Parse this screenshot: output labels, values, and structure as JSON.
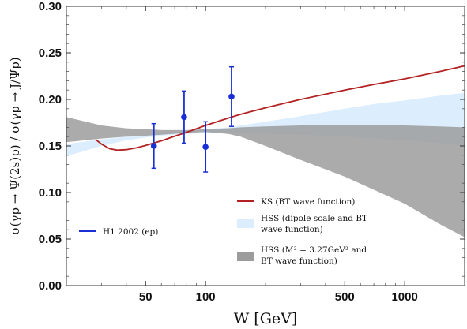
{
  "chart_data": {
    "type": "line",
    "title": "",
    "xlabel": "W [GeV]",
    "ylabel": "σ(γp → Ψ(2s)p) / σ(γp → J/Ψp)",
    "xscale": "log",
    "xlim": [
      20,
      2000
    ],
    "ylim": [
      0.0,
      0.3
    ],
    "x_ticks": [
      50,
      100,
      500,
      1000
    ],
    "y_ticks": [
      "0.00",
      "0.05",
      "0.10",
      "0.15",
      "0.20",
      "0.25",
      "0.30"
    ],
    "grid": false,
    "series": [
      {
        "name": "KS (BT wave function)",
        "kind": "line",
        "color": "#b22222",
        "x": [
          28,
          30,
          33,
          36,
          40,
          45,
          50,
          60,
          70,
          80,
          100,
          130,
          150,
          200,
          300,
          500,
          700,
          1000,
          1500,
          2000
        ],
        "y": [
          0.157,
          0.152,
          0.147,
          0.1455,
          0.146,
          0.148,
          0.1505,
          0.1555,
          0.1605,
          0.1645,
          0.172,
          0.18,
          0.184,
          0.191,
          0.2,
          0.21,
          0.216,
          0.222,
          0.23,
          0.236
        ]
      },
      {
        "name": "HSS (dipole scale and BT wave function)",
        "kind": "band",
        "color": "#dceefd",
        "x": [
          20,
          30,
          40,
          50,
          60,
          80,
          100,
          130,
          150,
          200,
          300,
          500,
          700,
          1000,
          1500,
          2000
        ],
        "y_low": [
          0.139,
          0.15,
          0.156,
          0.159,
          0.161,
          0.163,
          0.164,
          0.164,
          0.164,
          0.163,
          0.162,
          0.16,
          0.158,
          0.156,
          0.153,
          0.15
        ],
        "y_high": [
          0.152,
          0.157,
          0.16,
          0.162,
          0.164,
          0.166,
          0.168,
          0.17,
          0.172,
          0.176,
          0.182,
          0.19,
          0.195,
          0.199,
          0.204,
          0.207
        ]
      },
      {
        "name": "HSS (M² = 3.27GeV² and BT wave function)",
        "kind": "band",
        "color": "#9c9c9c",
        "x": [
          20,
          30,
          40,
          50,
          60,
          80,
          100,
          130,
          150,
          200,
          300,
          500,
          700,
          1000,
          1500,
          2000
        ],
        "y_low": [
          0.154,
          0.158,
          0.16,
          0.161,
          0.162,
          0.164,
          0.165,
          0.163,
          0.16,
          0.15,
          0.135,
          0.117,
          0.103,
          0.088,
          0.066,
          0.052
        ],
        "y_high": [
          0.181,
          0.172,
          0.169,
          0.168,
          0.167,
          0.167,
          0.168,
          0.169,
          0.17,
          0.171,
          0.172,
          0.172,
          0.172,
          0.172,
          0.171,
          0.17
        ]
      },
      {
        "name": "H1 2002 (ep)",
        "kind": "points",
        "color": "#1a2ed6",
        "x": [
          55,
          78,
          100,
          135
        ],
        "y": [
          0.15,
          0.181,
          0.149,
          0.203
        ],
        "err": [
          0.024,
          0.028,
          0.027,
          0.032
        ]
      }
    ],
    "legend": [
      {
        "label": "KS (BT wave function)",
        "series": 0,
        "position": "lower-right"
      },
      {
        "label": "HSS (dipole scale and BT",
        "label2": "wave function)",
        "series": 1,
        "position": "lower-right"
      },
      {
        "label": "HSS (M² = 3.27GeV² and",
        "label2": "BT wave function)",
        "series": 2,
        "position": "lower-right"
      },
      {
        "label": "H1 2002 (ep)",
        "series": 3,
        "position": "lower-left"
      }
    ]
  }
}
